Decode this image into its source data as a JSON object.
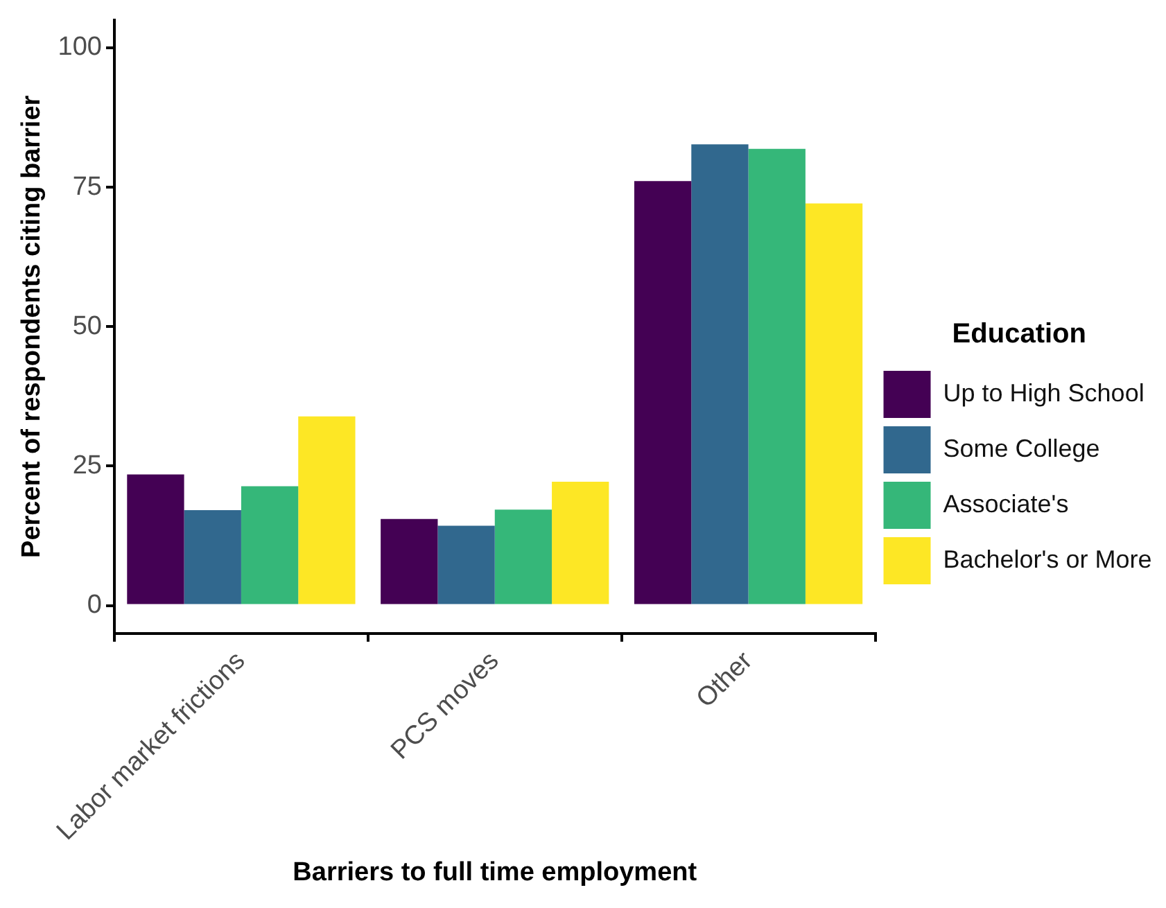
{
  "chart_data": {
    "type": "bar",
    "xlabel": "Barriers to full time employment",
    "ylabel": "Percent of respondents citing barrier",
    "legend_title": "Education",
    "categories": [
      "Labor market frictions",
      "PCS moves",
      "Other"
    ],
    "series": [
      {
        "name": "Up to High School",
        "color": "#440154",
        "values": [
          23.5,
          15.5,
          76.1
        ]
      },
      {
        "name": "Some College",
        "color": "#31688e",
        "values": [
          17.1,
          14.3,
          82.7
        ]
      },
      {
        "name": "Associate's",
        "color": "#35b779",
        "values": [
          21.4,
          17.2,
          81.9
        ]
      },
      {
        "name": "Bachelor's or More",
        "color": "#fde725",
        "values": [
          33.9,
          22.2,
          72.1
        ]
      }
    ],
    "ylim": [
      -5,
      105
    ],
    "yticks": [
      0,
      25,
      50,
      75,
      100
    ],
    "grid": false,
    "legend": "right"
  }
}
